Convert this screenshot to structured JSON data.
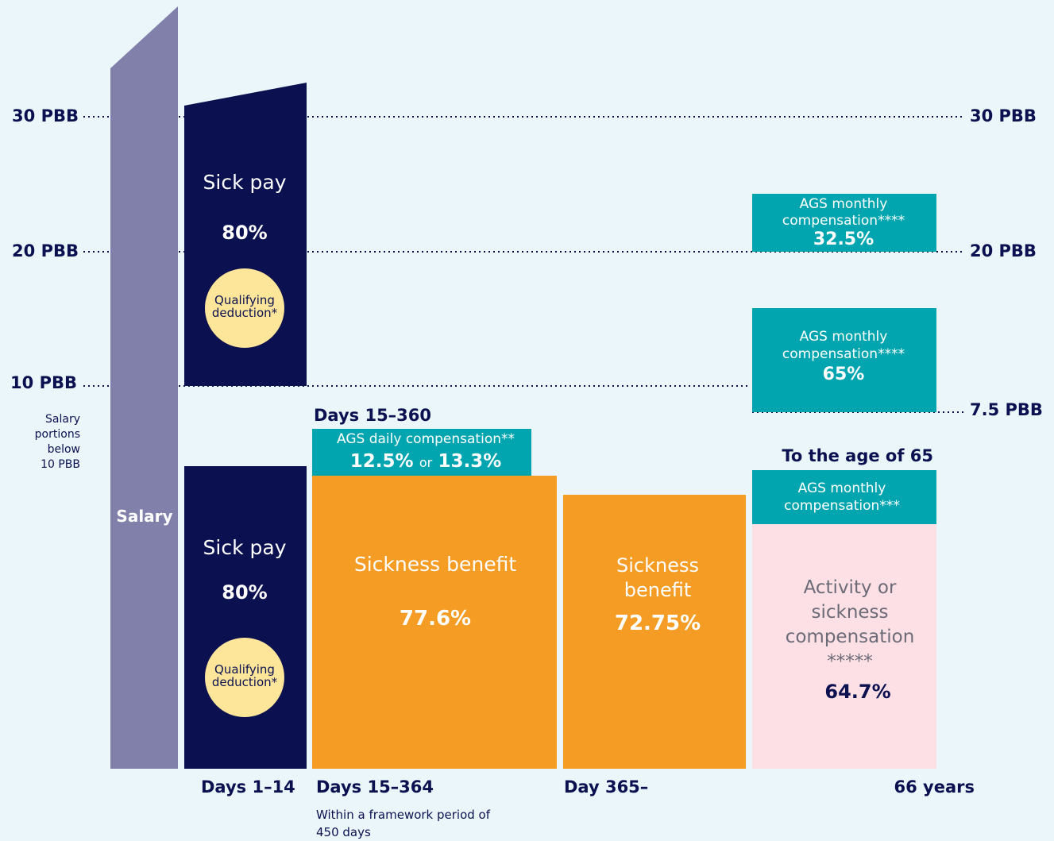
{
  "levels_left": [
    "30 PBB",
    "20 PBB",
    "10 PBB"
  ],
  "levels_right": [
    "30 PBB",
    "20 PBB",
    "7.5 PBB"
  ],
  "note_lines": [
    "Salary",
    "portions",
    "below",
    "10 PBB"
  ],
  "salary": {
    "label": "Salary"
  },
  "sick_pay_upper": {
    "title": "Sick pay",
    "rate": "80%",
    "deduction_lines": [
      "Qualifying",
      "deduction*"
    ]
  },
  "sick_pay_lower": {
    "title": "Sick pay",
    "rate": "80%",
    "deduction_lines": [
      "Qualifying",
      "deduction*"
    ]
  },
  "ags_daily": {
    "heading": "Days 15–360",
    "title": "AGS daily compensation**",
    "rate_a": "12.5%",
    "or": "or",
    "rate_b": "13.3%"
  },
  "sickness_benefit_1": {
    "title": "Sickness benefit",
    "rate": "77.6%"
  },
  "sickness_benefit_2": {
    "title_lines": [
      "Sickness",
      "benefit"
    ],
    "rate": "72.75%"
  },
  "ags_monthly_top": {
    "title_lines": [
      "AGS monthly",
      "compensation****"
    ],
    "rate": "32.5%"
  },
  "ags_monthly_mid": {
    "title_lines": [
      "AGS monthly",
      "compensation****"
    ],
    "rate": "65%"
  },
  "ags_monthly_low": {
    "heading": "To the age of 65",
    "title_lines": [
      "AGS monthly",
      "compensation***"
    ]
  },
  "activity": {
    "title_lines": [
      "Activity or",
      "sickness",
      "compensation",
      "*****"
    ],
    "rate": "64.7%"
  },
  "periods": {
    "p1": "Days 1–14",
    "p2": "Days 15–364",
    "p2_note_lines": [
      "Within a framework period of",
      "450 days"
    ],
    "p3": "Day 365–",
    "p4": "66 years"
  }
}
